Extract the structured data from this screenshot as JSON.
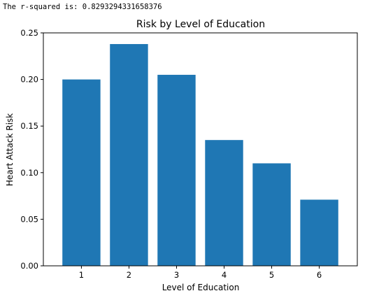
{
  "output_text": "The r-squared is: 0.8293294331658376",
  "chart_data": {
    "type": "bar",
    "title": "Risk by Level of Education",
    "xlabel": "Level of Education",
    "ylabel": "Heart Attack Risk",
    "categories": [
      "1",
      "2",
      "3",
      "4",
      "5",
      "6"
    ],
    "values": [
      0.2,
      0.238,
      0.205,
      0.135,
      0.11,
      0.071
    ],
    "ylim": [
      0,
      0.25
    ],
    "yticks": [
      "0.00",
      "0.05",
      "0.10",
      "0.15",
      "0.20",
      "0.25"
    ],
    "bar_color": "#1f77b4",
    "grid": false,
    "legend": false
  }
}
